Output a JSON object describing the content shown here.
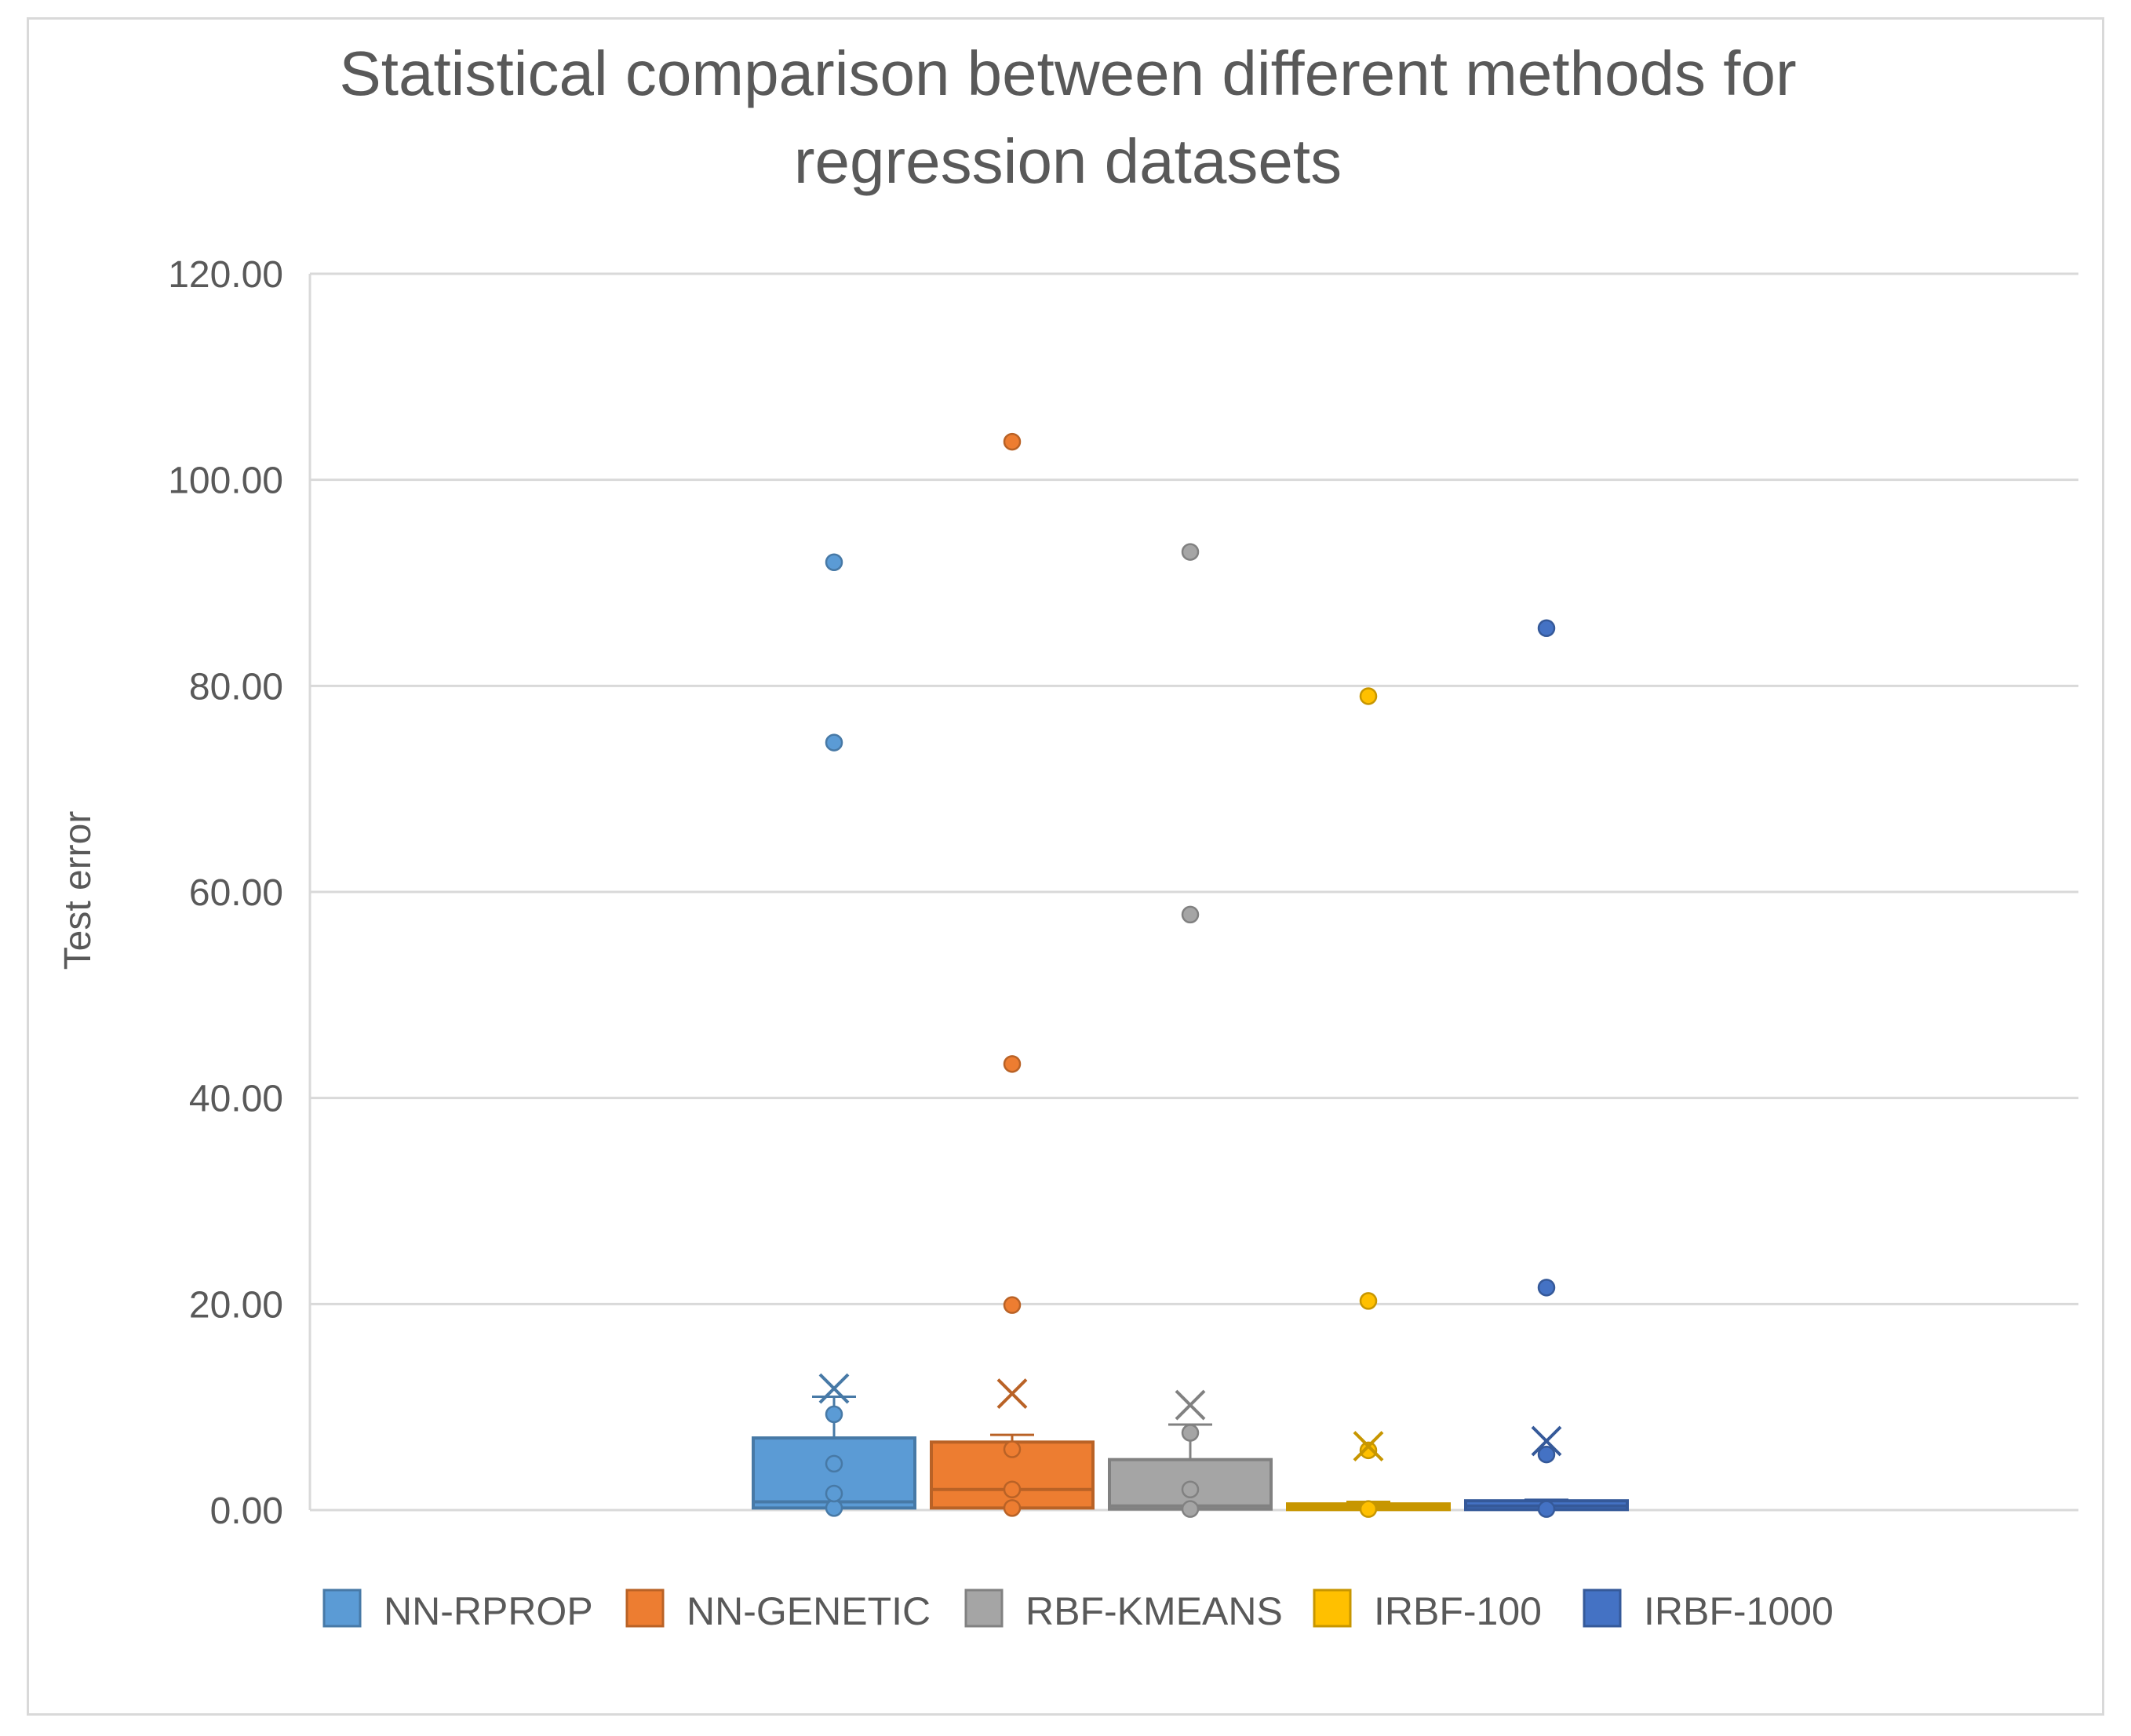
{
  "chart_data": {
    "type": "box",
    "title_lines": [
      "Statistical comparison between different methods for",
      "regression datasets"
    ],
    "xlabel": "",
    "ylabel": "Test error",
    "ylim": [
      0,
      120
    ],
    "yticks": [
      "0.00",
      "20.00",
      "40.00",
      "60.00",
      "80.00",
      "100.00",
      "120.00"
    ],
    "grid": true,
    "legend_position": "bottom",
    "series": [
      {
        "name": "NN-RPROP",
        "color": "#5b9bd5",
        "q1": 0.2,
        "median": 0.8,
        "q3": 7.0,
        "whisker_low": 0.0,
        "whisker_high": 11.0,
        "mean": 11.8,
        "points": [
          0.2,
          1.6,
          4.5,
          9.3
        ],
        "outliers": [
          74.5,
          92.0
        ]
      },
      {
        "name": "NN-GENETIC",
        "color": "#ed7d31",
        "q1": 0.2,
        "median": 2.0,
        "q3": 6.6,
        "whisker_low": 0.0,
        "whisker_high": 7.3,
        "mean": 11.3,
        "points": [
          0.2,
          2.0,
          5.9
        ],
        "outliers": [
          19.9,
          43.3,
          103.7
        ]
      },
      {
        "name": "RBF-KMEANS",
        "color": "#a5a5a5",
        "q1": 0.1,
        "median": 0.4,
        "q3": 4.9,
        "whisker_low": 0.0,
        "whisker_high": 8.3,
        "mean": 10.2,
        "points": [
          0.1,
          2.0,
          7.5
        ],
        "outliers": [
          57.8,
          93.0
        ]
      },
      {
        "name": "IRBF-100",
        "color": "#ffc000",
        "q1": 0.05,
        "median": 0.3,
        "q3": 0.6,
        "whisker_low": 0.0,
        "whisker_high": 0.8,
        "mean": 6.2,
        "points": [
          0.1,
          5.8
        ],
        "outliers": [
          20.3,
          79.0
        ]
      },
      {
        "name": "IRBF-1000",
        "color": "#4472c4",
        "q1": 0.05,
        "median": 0.4,
        "q3": 0.9,
        "whisker_low": 0.0,
        "whisker_high": 1.0,
        "mean": 6.7,
        "points": [
          0.1,
          5.4
        ],
        "outliers": [
          21.6,
          85.6
        ]
      }
    ]
  }
}
